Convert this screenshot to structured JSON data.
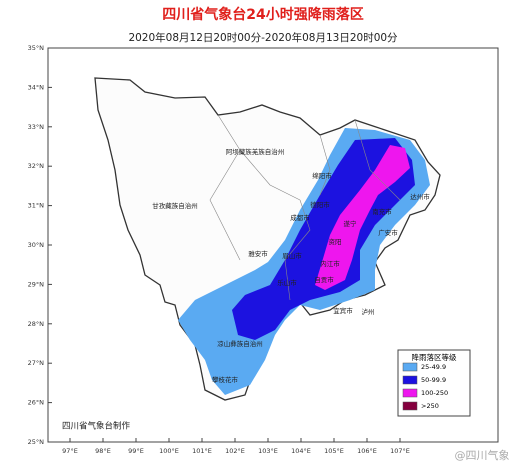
{
  "title": "四川省气象台24小时强降雨落区",
  "subtitle": "2020年08月12日20时00分-2020年08月13日20时00分",
  "lat_labels": [
    "35°N",
    "34°N",
    "33°N",
    "32°N",
    "31°N",
    "30°N",
    "29°N",
    "28°N",
    "27°N",
    "26°N",
    "25°N"
  ],
  "lon_labels": [
    "97°E",
    "98°E",
    "99°E",
    "100°E",
    "101°E",
    "102°E",
    "103°E",
    "104°E",
    "105°E",
    "106°E",
    "107°E"
  ],
  "regions": [
    "阿坝藏族羌族自治州",
    "甘孜藏族自治州",
    "绵阳市",
    "德阳市",
    "成都市",
    "达州市",
    "南充市",
    "遂宁",
    "雅安市",
    "眉山市",
    "资阳",
    "内江市",
    "乐山市",
    "自贡市",
    "宜宾市",
    "泸州",
    "凉山彝族自治州",
    "攀枝花市",
    "广安市"
  ],
  "legend": {
    "title": "降雨落区等级",
    "items": [
      {
        "label": "25-49.9",
        "color": "#5aaaf2"
      },
      {
        "label": "50-99.9",
        "color": "#1c12e0"
      },
      {
        "label": "100-250",
        "color": "#ee16ee"
      },
      {
        "label": ">250",
        "color": "#84003e"
      }
    ]
  },
  "credit": "四川省气象台制作",
  "watermark": "@四川气象"
}
